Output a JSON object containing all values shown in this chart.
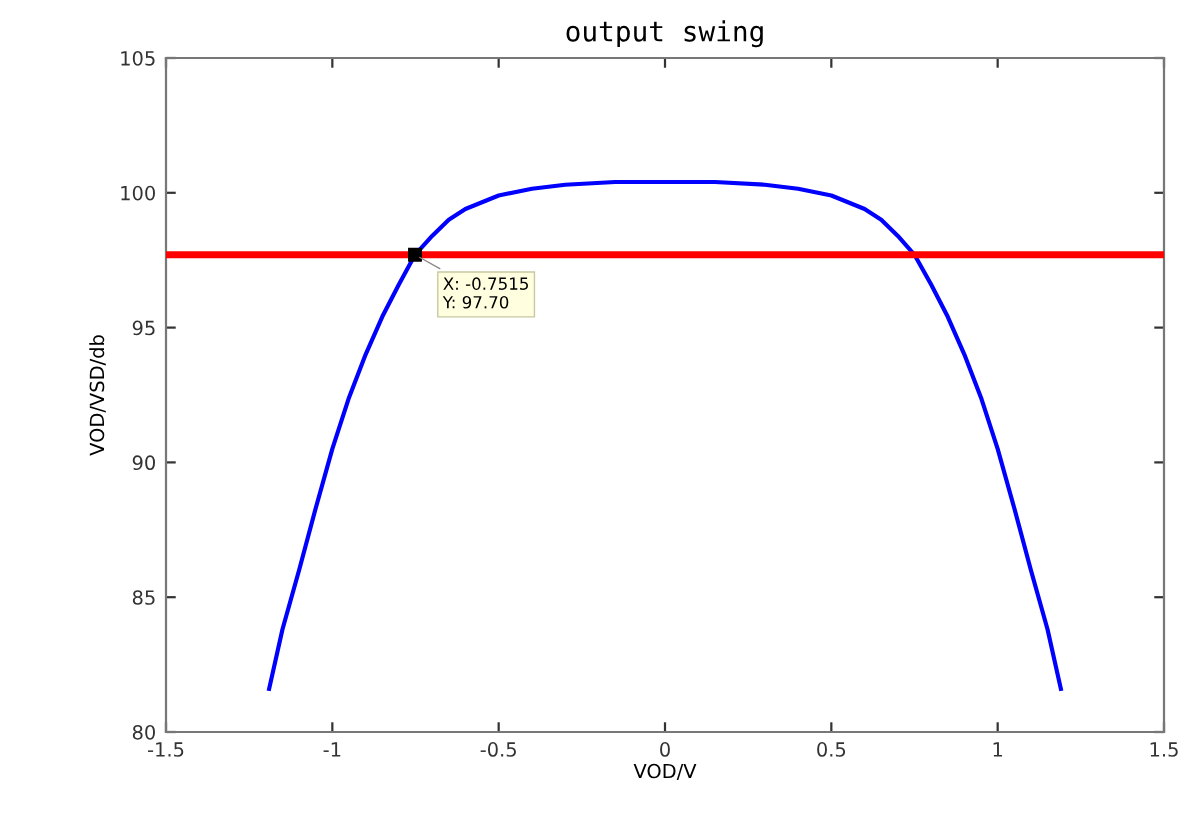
{
  "chart_data": {
    "type": "line",
    "title": "output swing",
    "xlabel": "VOD/V",
    "ylabel": "VOD/VSD/db",
    "series": [
      {
        "color": "#0000ff",
        "x": [
          -1.19,
          -1.15,
          -1.1,
          -1.05,
          -1.0,
          -0.95,
          -0.9,
          -0.85,
          -0.8,
          -0.7515,
          -0.7,
          -0.65,
          -0.6,
          -0.5,
          -0.4,
          -0.3,
          -0.15,
          0,
          0.15,
          0.3,
          0.4,
          0.5,
          0.6,
          0.65,
          0.7,
          0.75,
          0.8,
          0.85,
          0.9,
          0.95,
          1.0,
          1.05,
          1.1,
          1.15,
          1.19
        ],
        "values": [
          81.6,
          83.8,
          86.0,
          88.3,
          90.5,
          92.4,
          94.0,
          95.4,
          96.6,
          97.7,
          98.4,
          99.0,
          99.4,
          99.9,
          100.15,
          100.3,
          100.4,
          100.4,
          100.4,
          100.3,
          100.15,
          99.9,
          99.4,
          99.0,
          98.4,
          97.7,
          96.6,
          95.4,
          94.0,
          92.4,
          90.5,
          88.3,
          86.0,
          83.8,
          81.6
        ]
      }
    ],
    "ref_lines": [
      {
        "axis": "y",
        "value": 97.7,
        "color": "#ff0000",
        "line_style": "solid"
      }
    ],
    "annotations": [
      {
        "text": "X: -0.7515\nY: 97.70",
        "x": -0.7515,
        "y": 97.7
      }
    ],
    "xlim": [
      -1.5,
      1.5
    ],
    "ylim": [
      80,
      105
    ],
    "xticks": [
      -1.5,
      -1,
      -0.5,
      0,
      0.5,
      1,
      1.5
    ],
    "yticks": [
      80,
      85,
      90,
      95,
      100,
      105
    ],
    "grid": false,
    "legend": false,
    "marker": "none",
    "line_style": "solid"
  }
}
